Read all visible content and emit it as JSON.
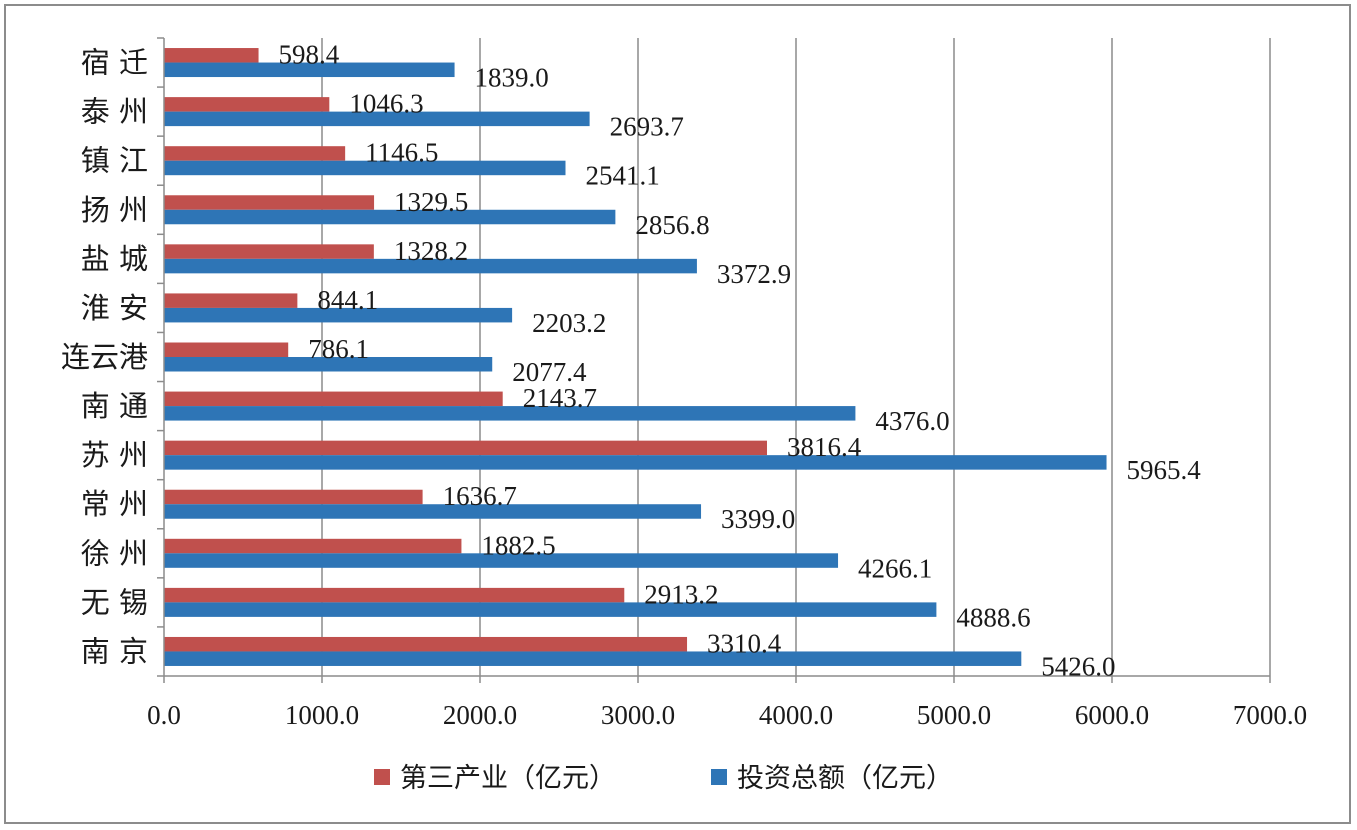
{
  "chart_data": {
    "type": "bar",
    "orientation": "horizontal",
    "categories": [
      "宿 迁",
      "泰 州",
      "镇 江",
      "扬 州",
      "盐 城",
      "淮 安",
      "连云港",
      "南 通",
      "苏 州",
      "常 州",
      "徐 州",
      "无 锡",
      "南 京"
    ],
    "series": [
      {
        "name": "第三产业（亿元）",
        "color": "#c0504d",
        "values": [
          598.4,
          1046.3,
          1146.5,
          1329.5,
          1328.2,
          844.1,
          786.1,
          2143.7,
          3816.4,
          1636.7,
          1882.5,
          2913.2,
          3310.4
        ],
        "labels": [
          "598.4",
          "1046.3",
          "1146.5",
          "1329.5",
          "1328.2",
          "844.1",
          "786.1",
          "2143.7",
          "3816.4",
          "1636.7",
          "1882.5",
          "2913.2",
          "3310.4"
        ]
      },
      {
        "name": "投资总额（亿元）",
        "color": "#2e75b6",
        "values": [
          1839.0,
          2693.7,
          2541.1,
          2856.8,
          3372.9,
          2203.2,
          2077.4,
          4376.0,
          5965.4,
          3399.0,
          4266.1,
          4888.6,
          5426.0
        ],
        "labels": [
          "1839.0",
          "2693.7",
          "2541.1",
          "2856.8",
          "3372.9",
          "2203.2",
          "2077.4",
          "4376.0",
          "5965.4",
          "3399.0",
          "4266.1",
          "4888.6",
          "5426.0"
        ]
      }
    ],
    "xlim": [
      0,
      7000
    ],
    "xticks": [
      "0.0",
      "1000.0",
      "2000.0",
      "3000.0",
      "4000.0",
      "5000.0",
      "6000.0",
      "7000.0"
    ],
    "grid": "vertical",
    "legend": "bottom",
    "title": "",
    "xlabel": "",
    "ylabel": ""
  }
}
